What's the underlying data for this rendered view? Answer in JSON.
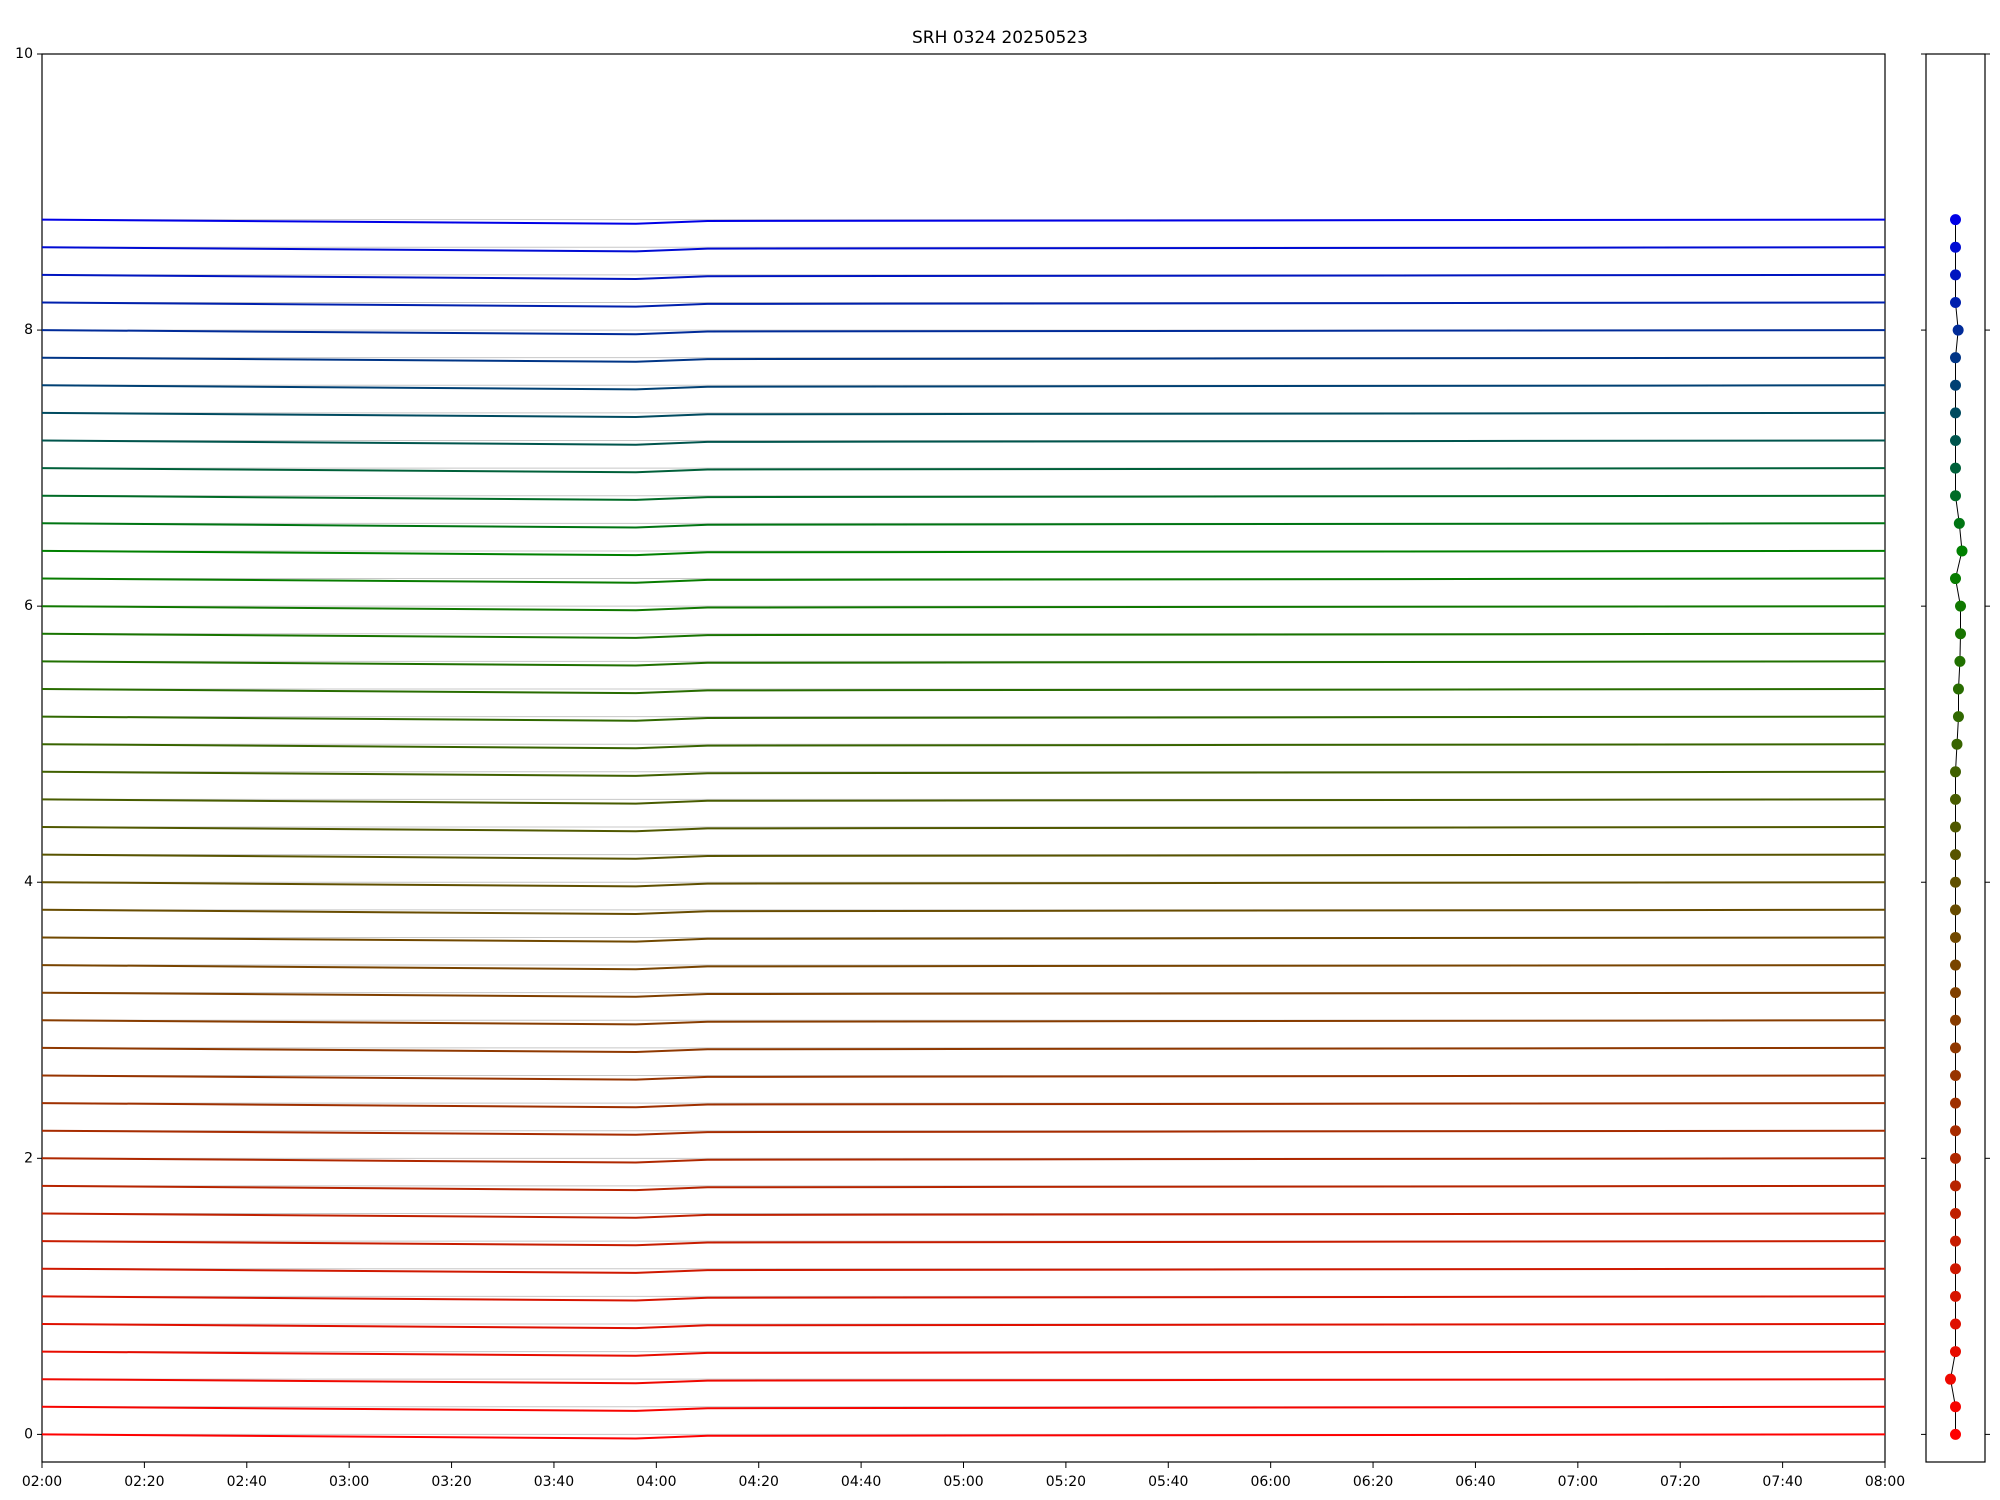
{
  "chart_data": {
    "type": "line",
    "title": "SRH 0324 20250523",
    "x": [
      "02:00",
      "03:56",
      "04:10",
      "08:00"
    ],
    "xlim": [
      "02:00",
      "08:00"
    ],
    "xticks": [
      "02:00",
      "02:20",
      "02:40",
      "03:00",
      "03:20",
      "03:40",
      "04:00",
      "04:20",
      "04:40",
      "05:00",
      "05:20",
      "05:40",
      "06:00",
      "06:20",
      "06:40",
      "07:00",
      "07:20",
      "07:40",
      "08:00"
    ],
    "ylim": [
      -0.2,
      10
    ],
    "yticks": [
      0,
      2,
      4,
      6,
      8,
      10
    ],
    "side_xlim": [
      -1,
      1
    ],
    "series": [
      {
        "color": "#ff0000",
        "marker": 0,
        "side_x": 0,
        "values": [
          0,
          -0.03,
          -0.01,
          0
        ]
      },
      {
        "color": "#f70400",
        "marker": 0.2,
        "side_x": 0,
        "values": [
          0.2,
          0.17,
          0.19,
          0.2
        ]
      },
      {
        "color": "#ef0800",
        "marker": 0.4,
        "side_x": -0.17,
        "values": [
          0.4,
          0.37,
          0.39,
          0.4
        ]
      },
      {
        "color": "#e70c00",
        "marker": 0.6,
        "side_x": 0,
        "values": [
          0.6,
          0.57,
          0.59,
          0.6
        ]
      },
      {
        "color": "#df1000",
        "marker": 0.8,
        "side_x": 0,
        "values": [
          0.8,
          0.77,
          0.79,
          0.8
        ]
      },
      {
        "color": "#d71400",
        "marker": 1,
        "side_x": 0,
        "values": [
          1,
          0.97,
          0.99,
          1
        ]
      },
      {
        "color": "#cf1800",
        "marker": 1.2,
        "side_x": 0,
        "values": [
          1.2,
          1.17,
          1.19,
          1.2
        ]
      },
      {
        "color": "#c71c00",
        "marker": 1.4,
        "side_x": 0,
        "values": [
          1.4,
          1.37,
          1.39,
          1.4
        ]
      },
      {
        "color": "#bf2000",
        "marker": 1.6,
        "side_x": 0,
        "values": [
          1.6,
          1.57,
          1.59,
          1.6
        ]
      },
      {
        "color": "#b72400",
        "marker": 1.8,
        "side_x": 0,
        "values": [
          1.8,
          1.77,
          1.79,
          1.8
        ]
      },
      {
        "color": "#af2800",
        "marker": 2,
        "side_x": 0,
        "values": [
          2,
          1.97,
          1.99,
          2
        ]
      },
      {
        "color": "#a72c00",
        "marker": 2.2,
        "side_x": 0,
        "values": [
          2.2,
          2.17,
          2.19,
          2.2
        ]
      },
      {
        "color": "#9f3000",
        "marker": 2.4,
        "side_x": 0,
        "values": [
          2.4,
          2.37,
          2.39,
          2.4
        ]
      },
      {
        "color": "#973400",
        "marker": 2.6,
        "side_x": 0,
        "values": [
          2.6,
          2.57,
          2.59,
          2.6
        ]
      },
      {
        "color": "#8f3800",
        "marker": 2.8,
        "side_x": 0,
        "values": [
          2.8,
          2.77,
          2.79,
          2.8
        ]
      },
      {
        "color": "#873c00",
        "marker": 3,
        "side_x": 0,
        "values": [
          3,
          2.97,
          2.99,
          3
        ]
      },
      {
        "color": "#804000",
        "marker": 3.2,
        "side_x": 0,
        "values": [
          3.2,
          3.17,
          3.19,
          3.2
        ]
      },
      {
        "color": "#784400",
        "marker": 3.4,
        "side_x": 0,
        "values": [
          3.4,
          3.37,
          3.39,
          3.4
        ]
      },
      {
        "color": "#704800",
        "marker": 3.6,
        "side_x": 0,
        "values": [
          3.6,
          3.57,
          3.59,
          3.6
        ]
      },
      {
        "color": "#684c00",
        "marker": 3.8,
        "side_x": 0,
        "values": [
          3.8,
          3.77,
          3.79,
          3.8
        ]
      },
      {
        "color": "#605000",
        "marker": 4,
        "side_x": 0,
        "values": [
          4,
          3.97,
          3.99,
          4
        ]
      },
      {
        "color": "#585400",
        "marker": 4.2,
        "side_x": 0,
        "values": [
          4.2,
          4.17,
          4.19,
          4.2
        ]
      },
      {
        "color": "#505800",
        "marker": 4.4,
        "side_x": 0,
        "values": [
          4.4,
          4.37,
          4.39,
          4.4
        ]
      },
      {
        "color": "#485c00",
        "marker": 4.6,
        "side_x": 0,
        "values": [
          4.6,
          4.57,
          4.59,
          4.6
        ]
      },
      {
        "color": "#406000",
        "marker": 4.8,
        "side_x": 0,
        "values": [
          4.8,
          4.77,
          4.79,
          4.8
        ]
      },
      {
        "color": "#386400",
        "marker": 5,
        "side_x": 0.05,
        "values": [
          5,
          4.97,
          4.99,
          5
        ]
      },
      {
        "color": "#306800",
        "marker": 5.2,
        "side_x": 0.1,
        "values": [
          5.2,
          5.17,
          5.19,
          5.2
        ]
      },
      {
        "color": "#286c00",
        "marker": 5.4,
        "side_x": 0.1,
        "values": [
          5.4,
          5.37,
          5.39,
          5.4
        ]
      },
      {
        "color": "#207000",
        "marker": 5.6,
        "side_x": 0.15,
        "values": [
          5.6,
          5.57,
          5.59,
          5.6
        ]
      },
      {
        "color": "#187400",
        "marker": 5.8,
        "side_x": 0.17,
        "values": [
          5.8,
          5.77,
          5.79,
          5.8
        ]
      },
      {
        "color": "#107800",
        "marker": 6,
        "side_x": 0.17,
        "values": [
          6,
          5.97,
          5.99,
          6
        ]
      },
      {
        "color": "#087c00",
        "marker": 6.2,
        "side_x": 0,
        "values": [
          6.2,
          6.17,
          6.19,
          6.2
        ]
      },
      {
        "color": "#008000",
        "marker": 6.4,
        "side_x": 0.22,
        "values": [
          6.4,
          6.37,
          6.39,
          6.4
        ]
      },
      {
        "color": "#007513",
        "marker": 6.6,
        "side_x": 0.13,
        "values": [
          6.6,
          6.57,
          6.59,
          6.6
        ]
      },
      {
        "color": "#006b26",
        "marker": 6.8,
        "side_x": 0,
        "values": [
          6.8,
          6.77,
          6.79,
          6.8
        ]
      },
      {
        "color": "#00603a",
        "marker": 7,
        "side_x": 0,
        "values": [
          7,
          6.97,
          6.99,
          7
        ]
      },
      {
        "color": "#00554d",
        "marker": 7.2,
        "side_x": 0,
        "values": [
          7.2,
          7.17,
          7.19,
          7.2
        ]
      },
      {
        "color": "#004b60",
        "marker": 7.4,
        "side_x": 0,
        "values": [
          7.4,
          7.37,
          7.39,
          7.4
        ]
      },
      {
        "color": "#004073",
        "marker": 7.6,
        "side_x": 0,
        "values": [
          7.6,
          7.57,
          7.59,
          7.6
        ]
      },
      {
        "color": "#003586",
        "marker": 7.8,
        "side_x": 0,
        "values": [
          7.8,
          7.77,
          7.79,
          7.8
        ]
      },
      {
        "color": "#002b99",
        "marker": 8,
        "side_x": 0.09,
        "values": [
          8,
          7.97,
          7.99,
          8
        ]
      },
      {
        "color": "#0020ad",
        "marker": 8.2,
        "side_x": 0,
        "values": [
          8.2,
          8.17,
          8.19,
          8.2
        ]
      },
      {
        "color": "#0015c0",
        "marker": 8.4,
        "side_x": 0,
        "values": [
          8.4,
          8.37,
          8.39,
          8.4
        ]
      },
      {
        "color": "#000bd3",
        "marker": 8.6,
        "side_x": 0,
        "values": [
          8.6,
          8.57,
          8.59,
          8.6
        ]
      },
      {
        "color": "#0000e6",
        "marker": 8.8,
        "side_x": 0,
        "values": [
          8.8,
          8.77,
          8.79,
          8.8
        ]
      }
    ]
  }
}
